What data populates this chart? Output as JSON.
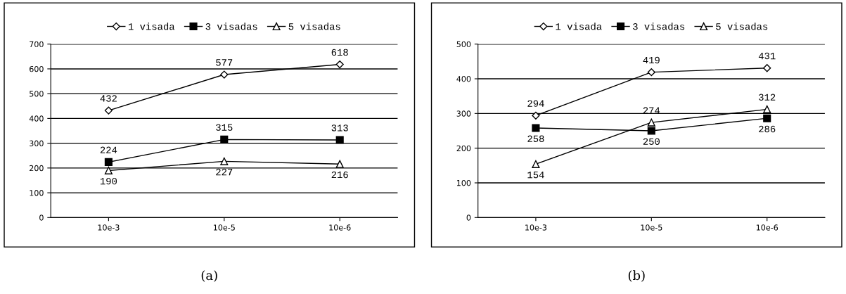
{
  "chart_data": [
    {
      "type": "line",
      "categories": [
        "10e-3",
        "10e-5",
        "10e-6"
      ],
      "ylim": [
        0,
        700
      ],
      "yticks": [
        0,
        100,
        200,
        300,
        400,
        500,
        600,
        700
      ],
      "grid": "y",
      "legend": "top",
      "data_labels": true,
      "annotations": [
        "(a)"
      ],
      "series": [
        {
          "name": "1 visada",
          "color": "#000000",
          "marker": "diamond",
          "values": [
            432,
            577,
            618
          ]
        },
        {
          "name": "3 visadas",
          "color": "#000000",
          "marker": "square",
          "values": [
            224,
            315,
            313
          ]
        },
        {
          "name": "5 visadas",
          "color": "#000000",
          "marker": "triangle",
          "values": [
            190,
            227,
            216
          ]
        }
      ]
    },
    {
      "type": "line",
      "categories": [
        "10e-3",
        "10e-5",
        "10e-6"
      ],
      "ylim": [
        0,
        500
      ],
      "yticks": [
        0,
        100,
        200,
        300,
        400,
        500
      ],
      "grid": "y",
      "legend": "top",
      "data_labels": true,
      "annotations": [
        "(b)"
      ],
      "series": [
        {
          "name": "1 visada",
          "color": "#000000",
          "marker": "diamond",
          "values": [
            294,
            419,
            431
          ]
        },
        {
          "name": "3 visadas",
          "color": "#000000",
          "marker": "square",
          "values": [
            258,
            250,
            286
          ]
        },
        {
          "name": "5 visadas",
          "color": "#000000",
          "marker": "triangle",
          "values": [
            154,
            274,
            312
          ]
        }
      ]
    }
  ]
}
